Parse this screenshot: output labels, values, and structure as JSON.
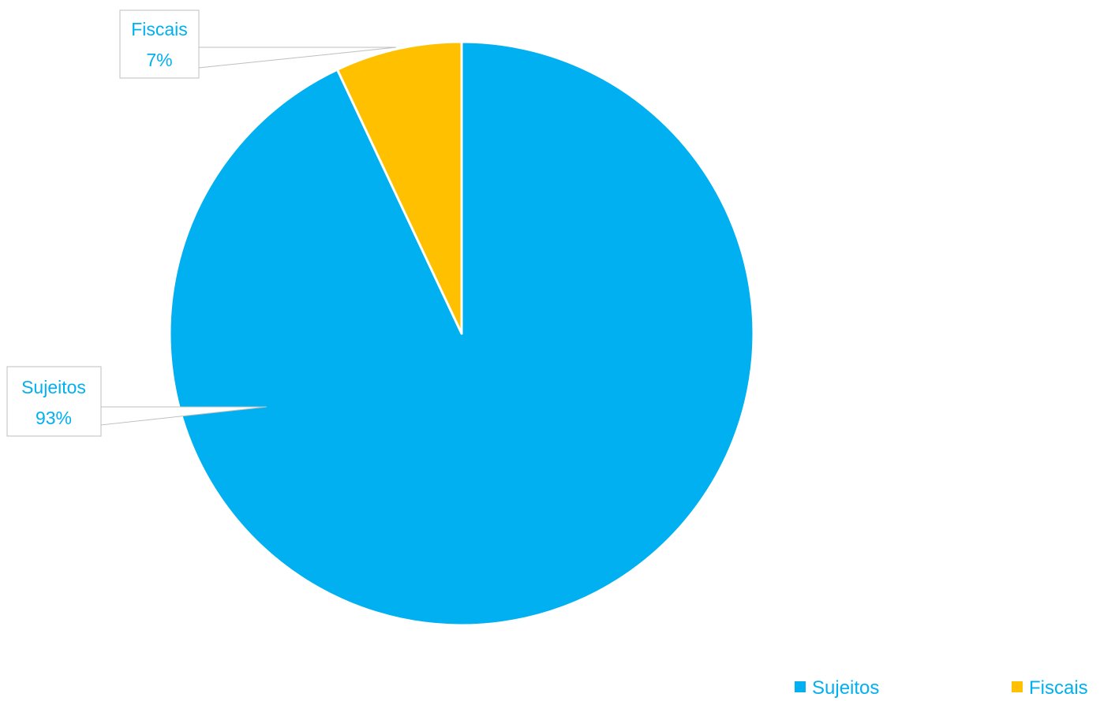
{
  "chart_data": {
    "type": "pie",
    "title": "",
    "categories": [
      "Sujeitos",
      "Fiscais"
    ],
    "values": [
      93,
      7
    ],
    "labels": [
      "93%",
      "7%"
    ],
    "start_angle_deg": 0,
    "direction": "clockwise",
    "colors": [
      "#00b0f0",
      "#ffc000"
    ],
    "label_color": "#00b0f0",
    "legend": {
      "placement": "bottom-right",
      "items": [
        {
          "name": "Sujeitos",
          "color": "#00b0f0"
        },
        {
          "name": "Fiscais",
          "color": "#ffc000"
        }
      ]
    }
  }
}
